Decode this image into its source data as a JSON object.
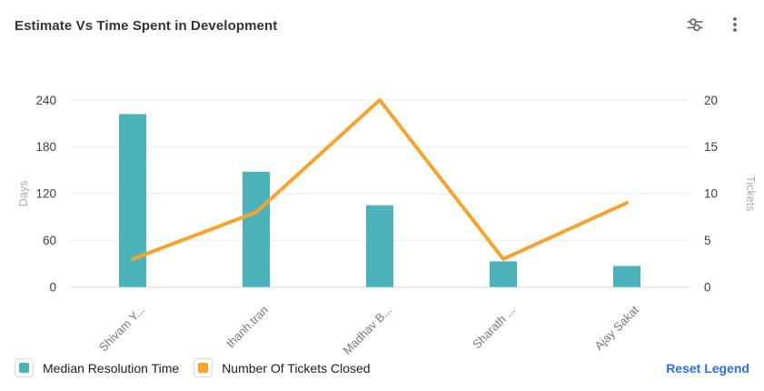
{
  "header": {
    "title": "Estimate Vs Time Spent in Development",
    "icons": [
      {
        "name": "filter-sliders-icon"
      },
      {
        "name": "kebab-menu-icon"
      }
    ]
  },
  "chart_data": {
    "type": "bar+line combo (dual axis)",
    "categories": [
      "Shivam Y...",
      "thanh.tran",
      "Madhav B...",
      "Sharath ...",
      "Ajay Sakat"
    ],
    "series": [
      {
        "name": "Median Resolution Time",
        "type": "bar",
        "axis": "left",
        "color": "#4DB3BB",
        "values": [
          222,
          148,
          105,
          33,
          27
        ]
      },
      {
        "name": "Number Of Tickets Closed",
        "type": "line",
        "axis": "right",
        "color": "#F8A32D",
        "values": [
          3,
          8,
          20,
          3,
          9
        ]
      }
    ],
    "left_axis": {
      "label": "Days",
      "min": 0,
      "max": 240,
      "ticks": [
        0,
        60,
        120,
        180,
        240
      ]
    },
    "right_axis": {
      "label": "Tickets",
      "min": 0,
      "max": 20,
      "ticks": [
        0,
        5,
        10,
        15,
        20
      ]
    },
    "grid": true,
    "legend_position": "bottom",
    "x_label_rotation": -45
  },
  "legend": {
    "items": [
      {
        "label": "Median Resolution Time",
        "color": "#4DB3BB"
      },
      {
        "label": "Number Of Tickets Closed",
        "color": "#F8A32D"
      }
    ],
    "reset_label": "Reset Legend"
  }
}
